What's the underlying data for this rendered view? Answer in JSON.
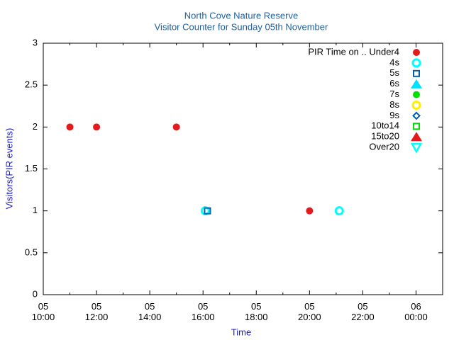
{
  "chart_data": {
    "type": "scatter",
    "title": "North Cove Nature Reserve",
    "subtitle": "Visitor Counter for Sunday 05th November",
    "x_label": "Time",
    "y_label": "Visitors(PIR events)",
    "xlim": [
      "05 10:00",
      "06 01:00"
    ],
    "xticks": [
      "05 10:00",
      "05 12:00",
      "05 14:00",
      "05 16:00",
      "05 18:00",
      "05 20:00",
      "05 22:00",
      "06 00:00"
    ],
    "ylim": [
      0,
      3
    ],
    "yticks": [
      0,
      0.5,
      1,
      1.5,
      2,
      2.5,
      3
    ],
    "grid": false,
    "legend": "top-right",
    "series": [
      {
        "name": "PIR Time on .. Under4",
        "color": "#e41a1c",
        "marker": "circle-filled",
        "x": [
          "05 11:00",
          "05 12:00",
          "05 15:00",
          "05 20:00"
        ],
        "values": [
          2,
          2,
          2,
          1
        ]
      },
      {
        "name": "4s",
        "color": "#00ffff",
        "marker": "circle-open",
        "x": [
          "05 16:05",
          "05 21:07"
        ],
        "values": [
          1,
          1
        ]
      },
      {
        "name": "5s",
        "color": "#0060ad",
        "marker": "square-open",
        "x": [
          "05 16:10"
        ],
        "values": [
          1
        ]
      },
      {
        "name": "6s",
        "color": "#00e0ff",
        "marker": "triangle-filled",
        "x": [],
        "values": []
      },
      {
        "name": "7s",
        "color": "#00e000",
        "marker": "circle-filled",
        "x": [],
        "values": []
      },
      {
        "name": "8s",
        "color": "#ffee00",
        "marker": "circle-open",
        "x": [],
        "values": []
      },
      {
        "name": "9s",
        "color": "#0060ad",
        "marker": "diamond-open",
        "x": [],
        "values": []
      },
      {
        "name": "10to14",
        "color": "#00e000",
        "marker": "square-open",
        "x": [],
        "values": []
      },
      {
        "name": "15to20",
        "color": "#e41a1c",
        "marker": "triangle-filled",
        "x": [],
        "values": []
      },
      {
        "name": "Over20",
        "color": "#00ffff",
        "marker": "triangle-down-open",
        "x": [],
        "values": []
      }
    ]
  }
}
